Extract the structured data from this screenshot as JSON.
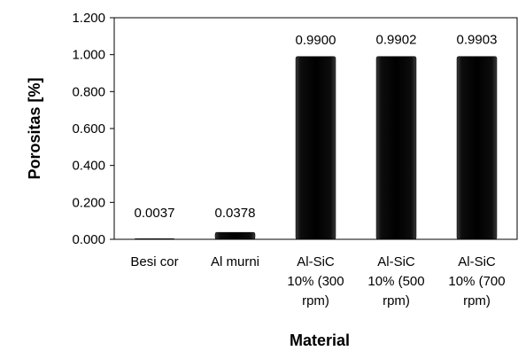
{
  "chart_data": {
    "type": "bar",
    "title": "",
    "xlabel": "Material",
    "ylabel": "Porositas  [%]",
    "ylim": [
      0,
      1.2
    ],
    "yticks": [
      "0.000",
      "0.200",
      "0.400",
      "0.600",
      "0.800",
      "1.000",
      "1.200"
    ],
    "categories": [
      [
        "Besi cor"
      ],
      [
        "Al murni"
      ],
      [
        "Al-SiC",
        "10% (300",
        "rpm)"
      ],
      [
        "Al-SiC",
        "10% (500",
        "rpm)"
      ],
      [
        "Al-SiC",
        "10% (700",
        "rpm)"
      ]
    ],
    "values": [
      0.0037,
      0.0378,
      0.99,
      0.9902,
      0.9903
    ],
    "data_labels": [
      "0.0037",
      "0.0378",
      "0.9900",
      "0.9902",
      "0.9903"
    ],
    "grid": false,
    "legend": "none",
    "bar_color": "#000000"
  }
}
